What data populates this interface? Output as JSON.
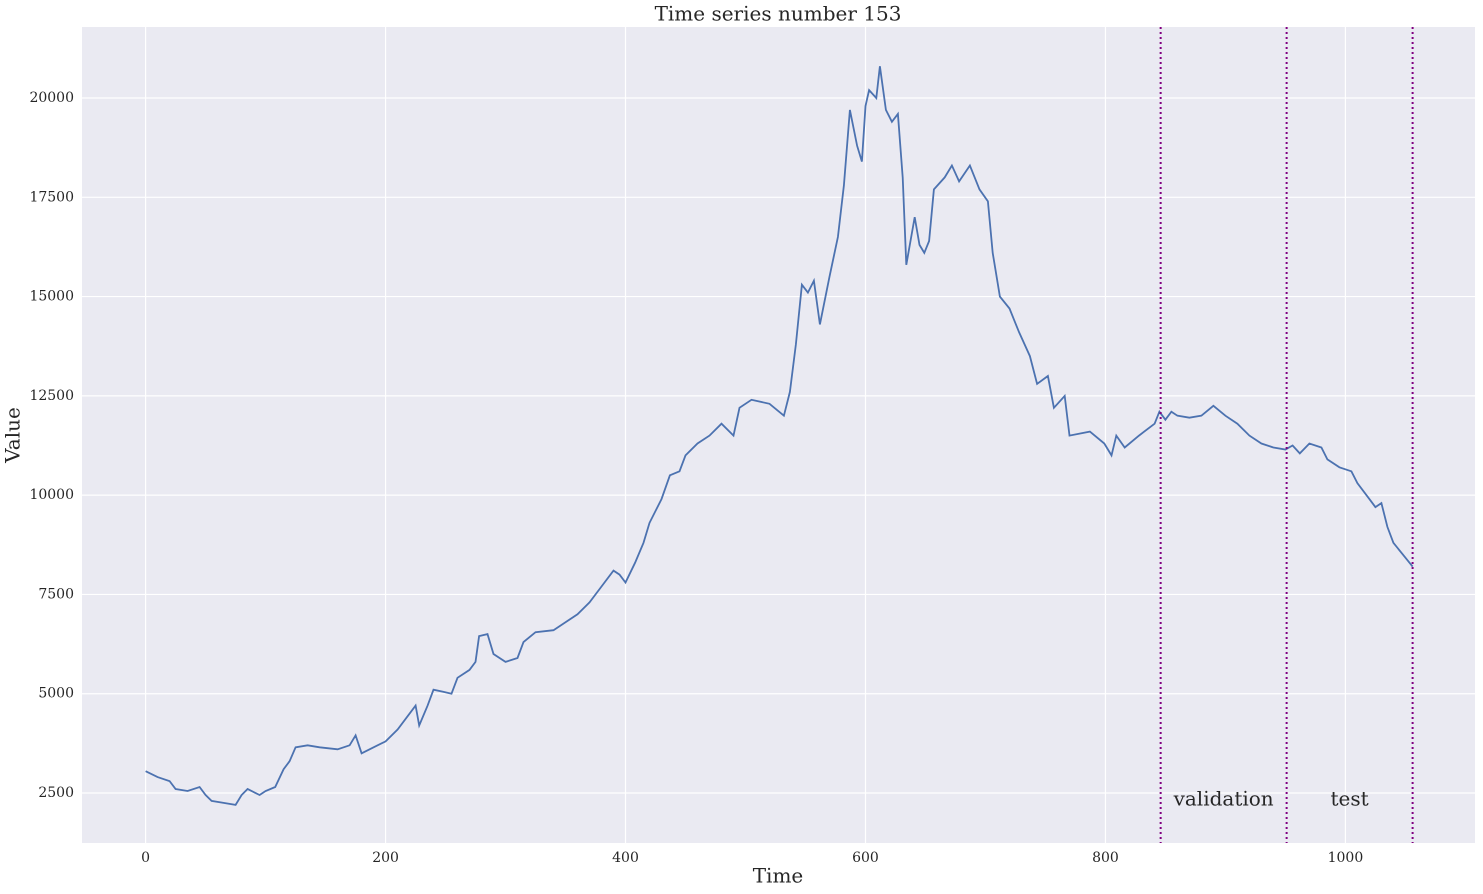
{
  "chart_data": {
    "type": "line",
    "title": "Time series number 153",
    "xlabel": "Time",
    "ylabel": "Value",
    "x": [
      0,
      10,
      20,
      25,
      35,
      45,
      50,
      55,
      65,
      75,
      80,
      85,
      95,
      100,
      108,
      115,
      120,
      125,
      135,
      145,
      160,
      170,
      175,
      180,
      190,
      200,
      210,
      220,
      225,
      228,
      235,
      240,
      248,
      255,
      260,
      270,
      275,
      278,
      285,
      290,
      300,
      310,
      315,
      325,
      340,
      350,
      360,
      370,
      380,
      390,
      395,
      400,
      408,
      415,
      420,
      425,
      430,
      437,
      445,
      450,
      460,
      470,
      480,
      490,
      495,
      505,
      520,
      532,
      537,
      542,
      547,
      552,
      557,
      562,
      570,
      577,
      582,
      587,
      593,
      597,
      600,
      603,
      609,
      612,
      617,
      622,
      627,
      631,
      634,
      641,
      645,
      649,
      653,
      657,
      666,
      672,
      678,
      687,
      695,
      702,
      706,
      712,
      720,
      728,
      737,
      743,
      752,
      757,
      766,
      770,
      787,
      799,
      805,
      809,
      816,
      828,
      841,
      845,
      850,
      855,
      860,
      870,
      880,
      890,
      900,
      910,
      920,
      930,
      940,
      950,
      956,
      962,
      970,
      980,
      985,
      995,
      1005,
      1010,
      1020,
      1025,
      1030,
      1035,
      1040,
      1048,
      1056
    ],
    "series": [
      {
        "name": "series",
        "color": "#4c72b0",
        "values": [
          3050,
          2900,
          2800,
          2600,
          2550,
          2650,
          2450,
          2300,
          2250,
          2200,
          2450,
          2600,
          2450,
          2550,
          2650,
          3100,
          3300,
          3650,
          3700,
          3650,
          3600,
          3700,
          3950,
          3500,
          3650,
          3800,
          4100,
          4500,
          4700,
          4200,
          4700,
          5100,
          5050,
          5000,
          5400,
          5600,
          5800,
          6450,
          6500,
          6000,
          5800,
          5900,
          6300,
          6550,
          6600,
          6800,
          7000,
          7300,
          7700,
          8100,
          8000,
          7800,
          8300,
          8800,
          9300,
          9600,
          9900,
          10500,
          10600,
          11000,
          11300,
          11500,
          11800,
          11500,
          12200,
          12400,
          12300,
          12000,
          12600,
          13800,
          15300,
          15100,
          15400,
          14300,
          15500,
          16500,
          17800,
          19700,
          18800,
          18400,
          19800,
          20200,
          20000,
          20800,
          19700,
          19400,
          19600,
          18000,
          15800,
          17000,
          16300,
          16100,
          16400,
          17700,
          18000,
          18300,
          17900,
          18300,
          17700,
          17400,
          16100,
          15000,
          14700,
          14100,
          13500,
          12800,
          13000,
          12200,
          12500,
          11500,
          11600,
          11300,
          11000,
          11500,
          11200,
          11500,
          11800,
          12100,
          11900,
          12100,
          12000,
          11950,
          12000,
          12250,
          12000,
          11800,
          11500,
          11300,
          11200,
          11150,
          11250,
          11050,
          11300,
          11200,
          10900,
          10700,
          10600,
          10300,
          9900,
          9700,
          9800,
          9200,
          8800,
          8500,
          8200
        ]
      }
    ],
    "xlim": [
      -53,
      1108
    ],
    "ylim": [
      1241,
      21788
    ],
    "xticks": [
      0,
      200,
      400,
      600,
      800,
      1000
    ],
    "yticks": [
      2500,
      5000,
      7500,
      10000,
      12500,
      15000,
      17500,
      20000
    ],
    "grid": true,
    "vlines": [
      846,
      951,
      1056
    ],
    "vline_color": "#800080",
    "annotations": [
      "validation",
      "test"
    ]
  }
}
